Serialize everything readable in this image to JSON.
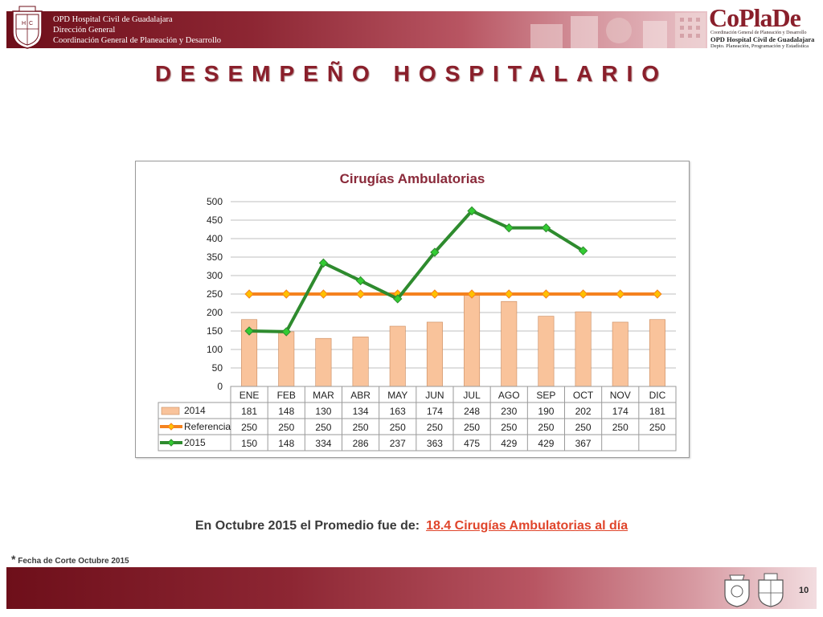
{
  "header": {
    "institution_line1": "OPD Hospital Civil de Guadalajara",
    "institution_line2": "Dirección General",
    "institution_line3": "Coordinación General de Planeación y Desarrollo",
    "coplade_brand": "CoPlaDe",
    "coplade_line1": "Coordinación General de Planeación y Desarrollo",
    "coplade_line2": "OPD Hospital Civil de Guadalajara",
    "coplade_line3": "Depto. Planeación, Programación y Estadística"
  },
  "page_title": "DESEMPEÑO HOSPITALARIO",
  "chart_data": {
    "type": "bar",
    "title": "Cirugías Ambulatorias",
    "categories": [
      "ENE",
      "FEB",
      "MAR",
      "ABR",
      "MAY",
      "JUN",
      "JUL",
      "AGO",
      "SEP",
      "OCT",
      "NOV",
      "DIC"
    ],
    "ylim": [
      0,
      500
    ],
    "yticks": [
      0,
      50,
      100,
      150,
      200,
      250,
      300,
      350,
      400,
      450,
      500
    ],
    "grid": true,
    "legend": "data-table",
    "series": [
      {
        "name": "2014",
        "kind": "bar",
        "color": "#f9c39b",
        "values": [
          181,
          148,
          130,
          134,
          163,
          174,
          248,
          230,
          190,
          202,
          174,
          181
        ]
      },
      {
        "name": "Referencia",
        "kind": "line",
        "color": "#f5821f",
        "marker_color": "#ffc000",
        "values": [
          250,
          250,
          250,
          250,
          250,
          250,
          250,
          250,
          250,
          250,
          250,
          250
        ]
      },
      {
        "name": "2015",
        "kind": "line",
        "color": "#2e8b2e",
        "marker_color": "#33cc33",
        "values": [
          150,
          148,
          334,
          286,
          237,
          363,
          475,
          429,
          429,
          367,
          null,
          null
        ]
      }
    ]
  },
  "summary": {
    "prefix": "En Octubre 2015 el Promedio fue de:",
    "highlight": "18.4 Cirugías Ambulatorias al día"
  },
  "footnote": {
    "asterisk": "*",
    "text": "Fecha de Corte Octubre 2015"
  },
  "page_number": "10",
  "colors": {
    "brand": "#8a1f2b",
    "highlight": "#e0452b"
  }
}
